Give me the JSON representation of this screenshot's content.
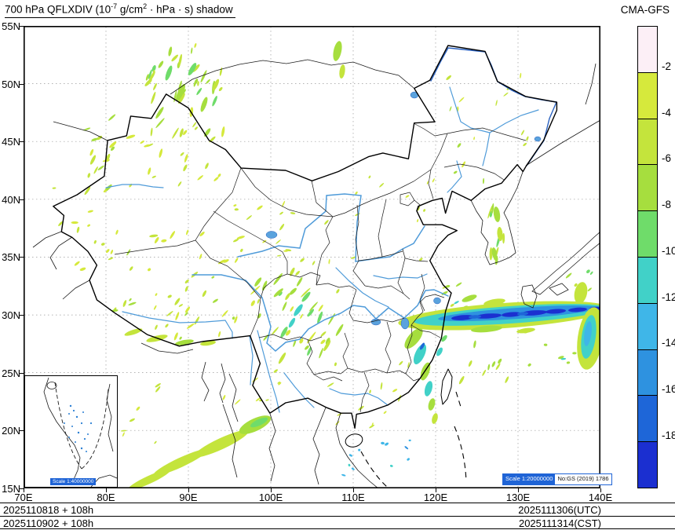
{
  "header": {
    "title_parts": {
      "p1": "700 hPa QFLXDIV (10",
      "sup1": "-7",
      "p2": " g/cm",
      "sup2": "2",
      "p3": " · hPa · s) shadow"
    },
    "model": "CMA-GFS"
  },
  "axes": {
    "x_ticks": [
      "70E",
      "80E",
      "90E",
      "100E",
      "110E",
      "120E",
      "130E",
      "140E"
    ],
    "y_ticks": [
      "55N",
      "50N",
      "45N",
      "40N",
      "35N",
      "30N",
      "25N",
      "20N",
      "15N"
    ]
  },
  "colorbar": {
    "labels": [
      "-2",
      "-4",
      "-6",
      "-8",
      "-10",
      "-12",
      "-14",
      "-16",
      "-18"
    ],
    "colors": [
      "#fceff6",
      "#d6e93c",
      "#c4e43c",
      "#a6de3e",
      "#6fdc6a",
      "#41d1c8",
      "#3fb6e8",
      "#2e92e0",
      "#1e66d8",
      "#1b2fd0"
    ]
  },
  "map": {
    "scale_badge": {
      "scale": "Scale 1:20000000",
      "number": "No:GS (2019) 1786"
    },
    "inset_badge": "Scale 1:40000000",
    "river_color": "#4f9bd9",
    "river_dark_color": "#2b62c0",
    "grid_color": "#999999",
    "border_color": "#000000"
  },
  "footer": {
    "left": [
      "2025110818 + 108h",
      "2025110902 + 108h"
    ],
    "right": [
      "2025111306(UTC)",
      "2025111314(CST)"
    ]
  }
}
